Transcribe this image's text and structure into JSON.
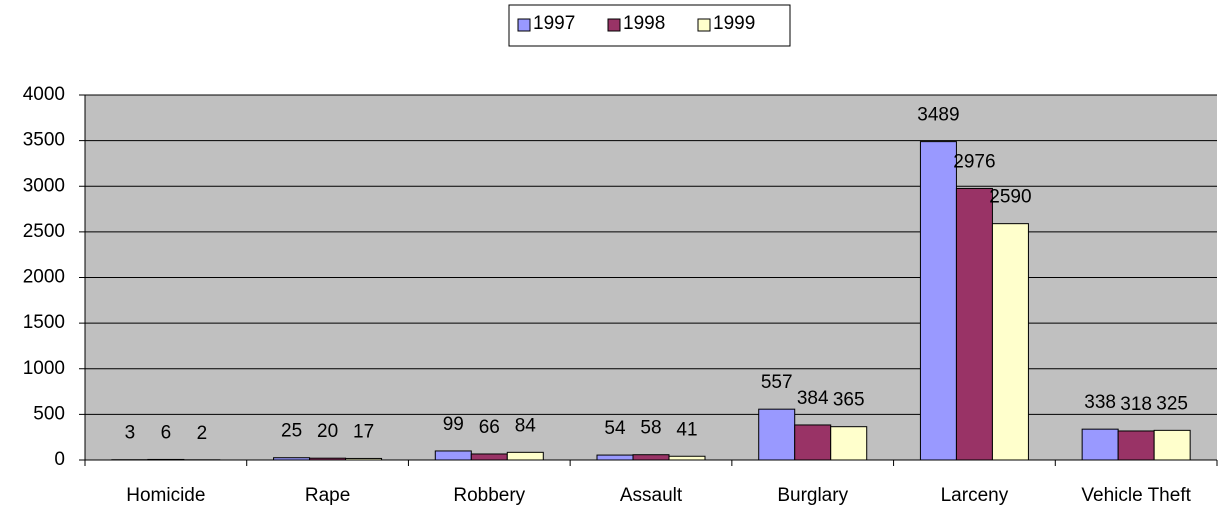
{
  "chart_data": {
    "type": "bar",
    "categories": [
      "Homicide",
      "Rape",
      "Robbery",
      "Assault",
      "Burglary",
      "Larceny",
      "Vehicle Theft"
    ],
    "series": [
      {
        "name": "1997",
        "color": "#9999ff",
        "values": [
          3,
          25,
          99,
          54,
          557,
          3489,
          338
        ]
      },
      {
        "name": "1998",
        "color": "#993366",
        "values": [
          6,
          20,
          66,
          58,
          384,
          2976,
          318
        ]
      },
      {
        "name": "1999",
        "color": "#ffffcc",
        "values": [
          2,
          17,
          84,
          41,
          365,
          2590,
          325
        ]
      }
    ],
    "ylim": [
      0,
      4000
    ],
    "yticks": [
      0,
      500,
      1000,
      1500,
      2000,
      2500,
      3000,
      3500,
      4000
    ],
    "grid": true,
    "legend": "top"
  }
}
